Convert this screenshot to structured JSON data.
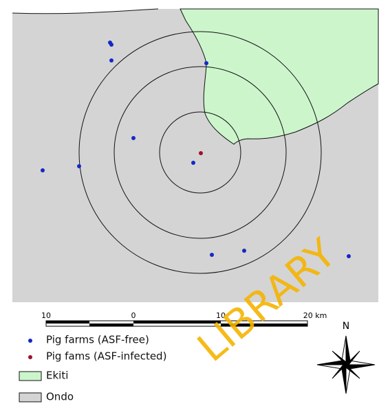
{
  "scale_bar": {
    "labels": [
      "10",
      "0",
      "10",
      "20 km"
    ]
  },
  "legend": {
    "items": [
      {
        "label": "Pig farms (ASF-free)"
      },
      {
        "label": "Pig fams (ASF-infected)"
      },
      {
        "label": "Ekiti"
      },
      {
        "label": "Ondo"
      }
    ]
  },
  "north_arrow": {
    "label": "N"
  },
  "watermark": "LIBRARY"
}
